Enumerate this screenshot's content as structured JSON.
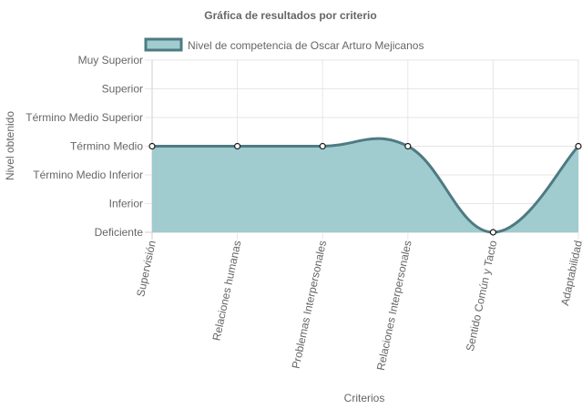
{
  "chart_data": {
    "type": "area",
    "title": "Gráfica de resultados por criterio",
    "xlabel": "Criterios",
    "ylabel": "Nivel obtenido",
    "y_levels": [
      "Deficiente",
      "Inferior",
      "Término Medio Inferior",
      "Término Medio",
      "Término Medio Superior",
      "Superior",
      "Muy Superior"
    ],
    "categories": [
      "Supervisión",
      "Relaciones humanas",
      "Problemas Interpersonales",
      "Relaciones Interpersonales",
      "Sentido Común y Tacto",
      "Adaptabilidad"
    ],
    "series": [
      {
        "name": "Nivel de competencia de Oscar Arturo Mejicanos",
        "values": [
          3,
          3,
          3,
          3,
          0,
          3
        ],
        "line_color": "#4e7b82",
        "fill_color": "#a0cbcf"
      }
    ],
    "ylim": [
      0,
      6
    ],
    "grid": true,
    "legend_position": "top"
  }
}
